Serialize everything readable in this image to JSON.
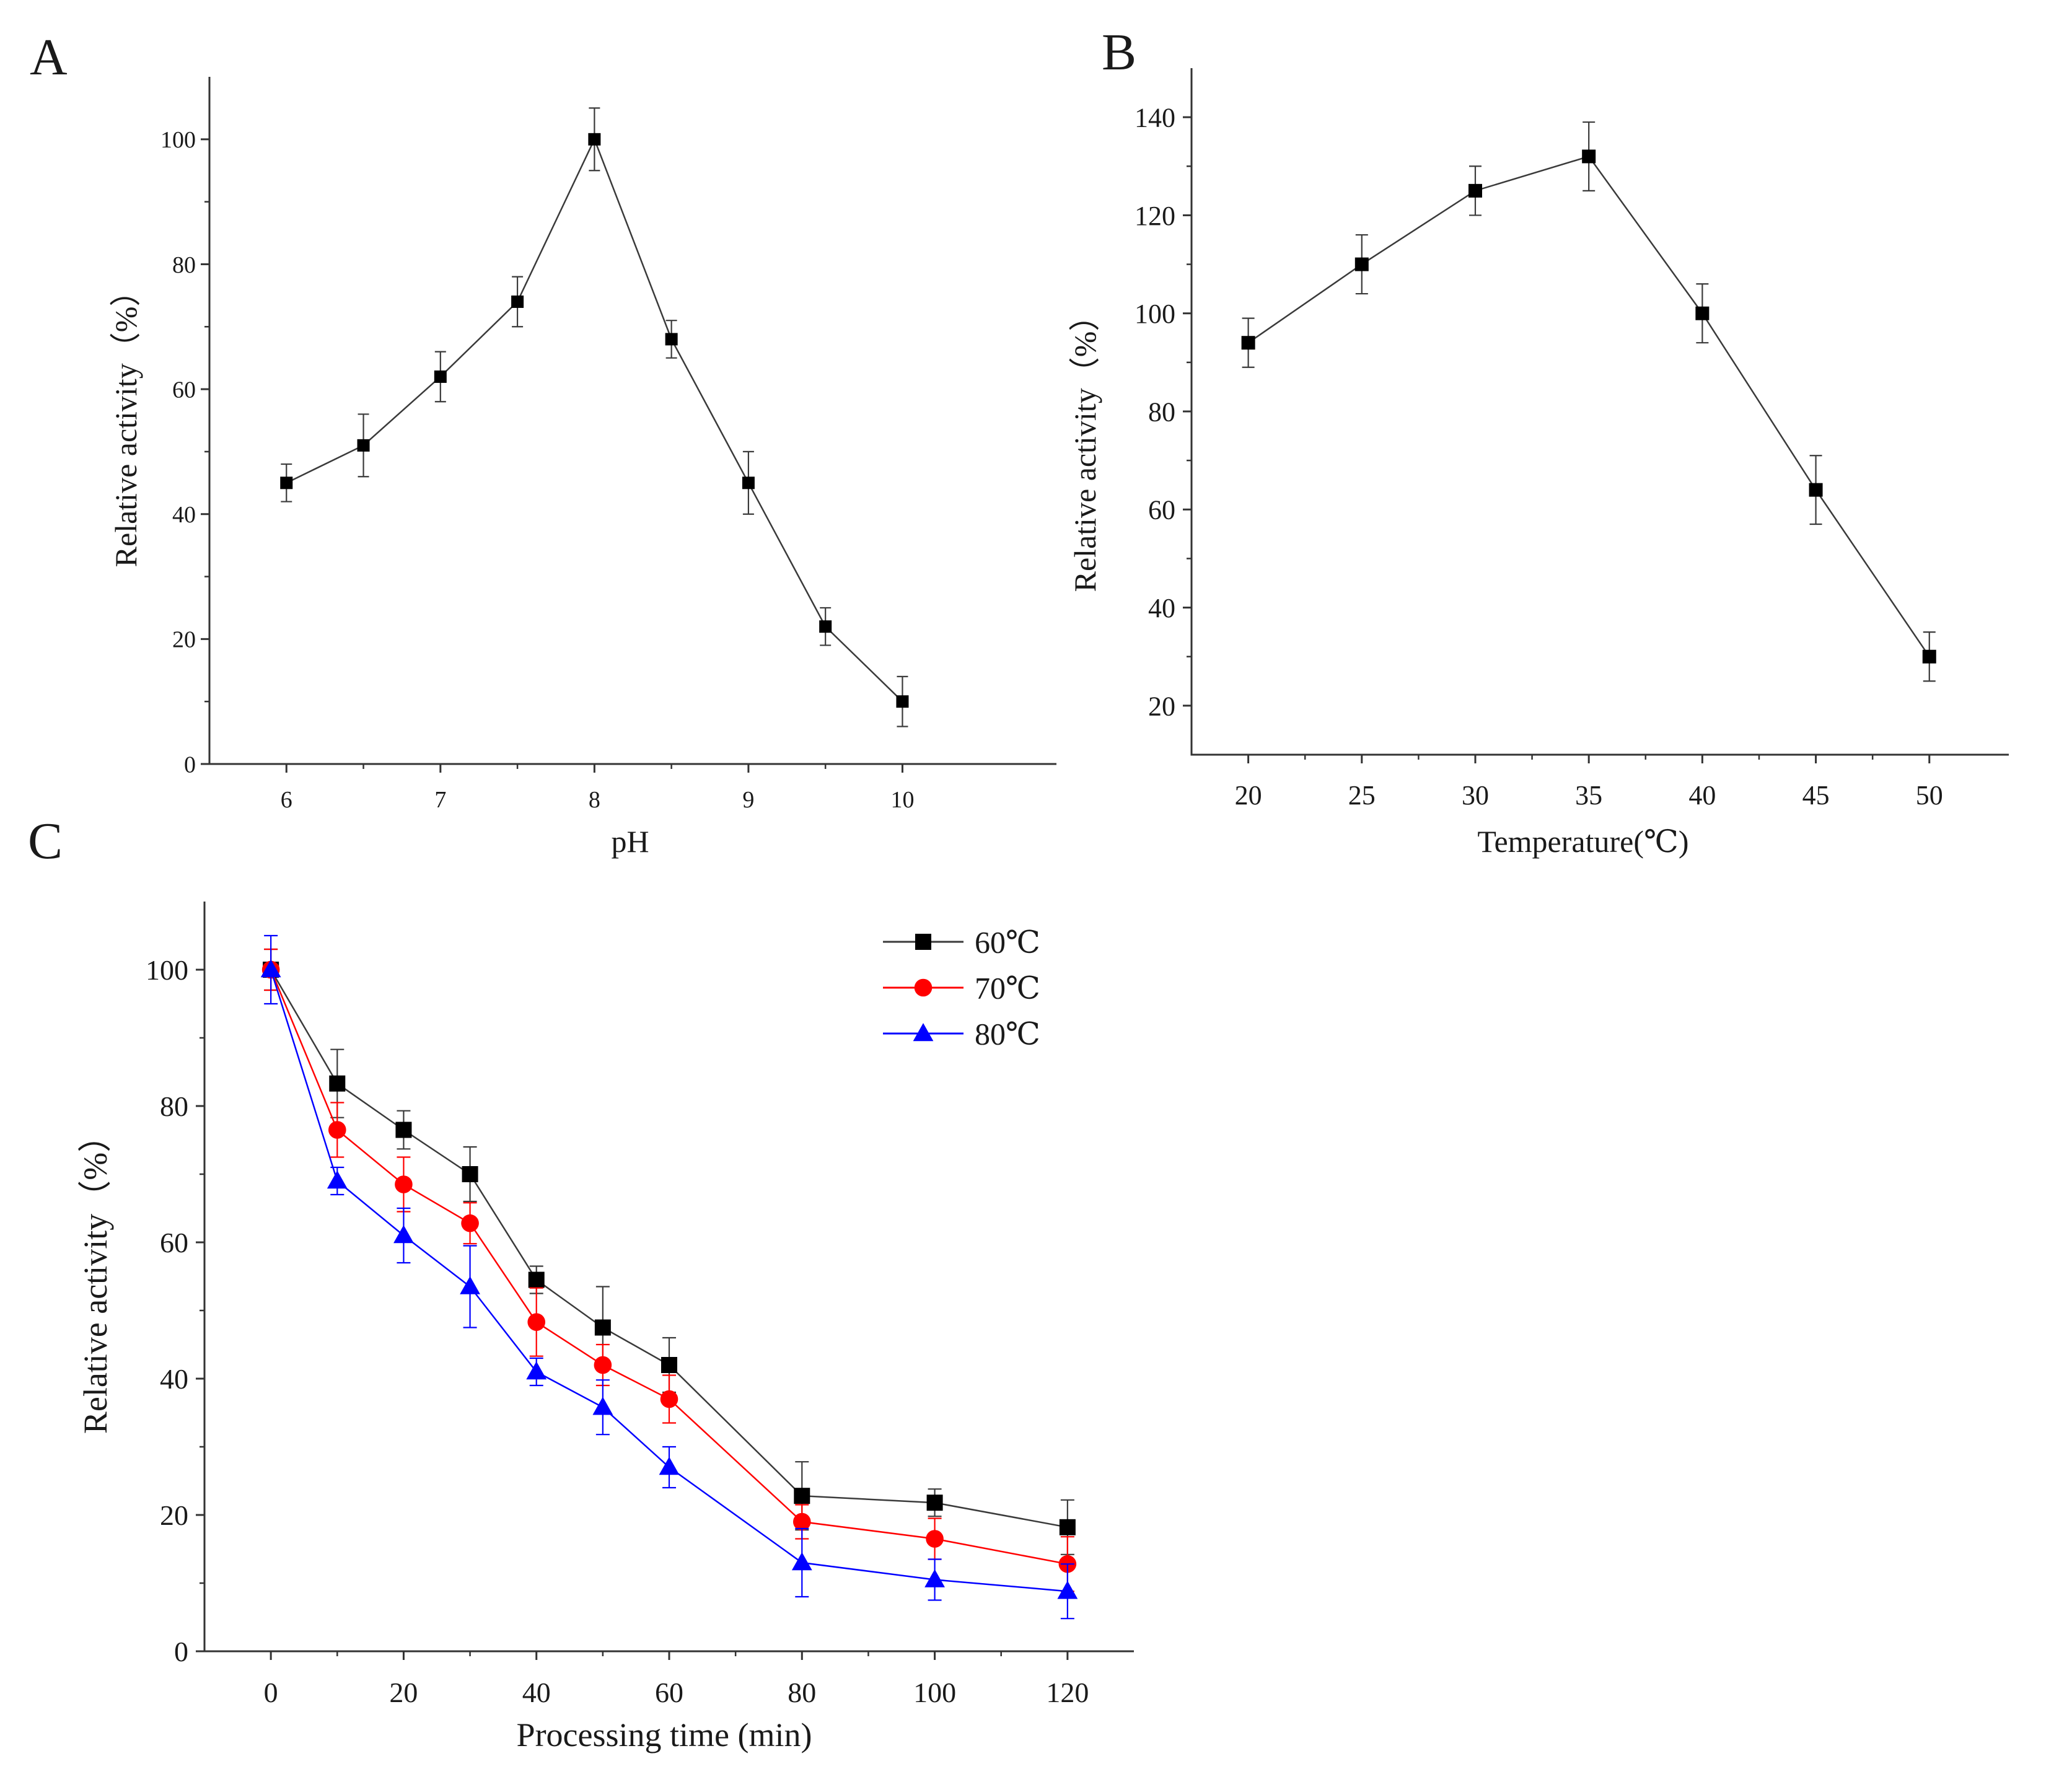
{
  "chart_data": [
    {
      "type": "line",
      "panel_label": "A",
      "xlabel": "pH",
      "ylabel": "Relative activity（%）",
      "xlim": [
        5.5,
        11.0
      ],
      "ylim": [
        0,
        110
      ],
      "xticks": [
        6,
        7,
        8,
        9,
        10
      ],
      "yticks": [
        0,
        20,
        40,
        60,
        80,
        100
      ],
      "grid": false,
      "series": [
        {
          "color": "#000000",
          "marker": "square",
          "x": [
            6,
            6.5,
            7,
            7.5,
            8,
            8.5,
            9,
            9.5,
            10
          ],
          "values": [
            45,
            51,
            62,
            74,
            100,
            68,
            45,
            22,
            10
          ],
          "err": [
            3,
            5,
            4,
            4,
            5,
            3,
            5,
            3,
            4
          ]
        }
      ]
    },
    {
      "type": "line",
      "panel_label": "B",
      "xlabel": "Temperature(℃)",
      "ylabel": "Relative activity（%）",
      "xlim": [
        17.5,
        53.5
      ],
      "ylim": [
        10,
        150
      ],
      "xticks": [
        20,
        25,
        30,
        35,
        40,
        45,
        50
      ],
      "yticks": [
        20,
        40,
        60,
        80,
        100,
        120,
        140
      ],
      "grid": false,
      "series": [
        {
          "color": "#000000",
          "marker": "square",
          "x": [
            20,
            25,
            30,
            35,
            40,
            45,
            50
          ],
          "values": [
            94,
            110,
            125,
            132,
            100,
            64,
            30
          ],
          "err": [
            5,
            6,
            5,
            7,
            6,
            7,
            5
          ]
        }
      ]
    },
    {
      "type": "line",
      "panel_label": "C",
      "xlabel": "Processing time (min)",
      "ylabel": "Relative activity（%）",
      "xlim": [
        -10,
        130
      ],
      "ylim": [
        0,
        110
      ],
      "xticks": [
        0,
        20,
        40,
        60,
        80,
        100,
        120
      ],
      "yticks": [
        0,
        20,
        40,
        60,
        80,
        100
      ],
      "grid": false,
      "legend_position": "top-right",
      "series": [
        {
          "name": "60℃",
          "color": "#000000",
          "marker": "square",
          "x": [
            0,
            10,
            20,
            30,
            40,
            50,
            60,
            80,
            100,
            120
          ],
          "values": [
            100,
            83.3,
            76.5,
            70,
            54.5,
            47.5,
            42,
            22.8,
            21.8,
            18.2
          ],
          "err": [
            3,
            5,
            2.8,
            4,
            2,
            6,
            4,
            5,
            2,
            4
          ]
        },
        {
          "name": "70℃",
          "color": "#ff0000",
          "marker": "circle",
          "x": [
            0,
            10,
            20,
            30,
            40,
            50,
            60,
            80,
            100,
            120
          ],
          "values": [
            100,
            76.5,
            68.5,
            62.8,
            48.3,
            42,
            37,
            19,
            16.5,
            12.8
          ],
          "err": [
            3,
            4,
            4,
            3,
            5,
            3,
            3.5,
            2.5,
            3,
            4
          ]
        },
        {
          "name": "80℃",
          "color": "#0000ff",
          "marker": "triangle",
          "x": [
            0,
            10,
            20,
            30,
            40,
            50,
            60,
            80,
            100,
            120
          ],
          "values": [
            100,
            69,
            61,
            53.5,
            41,
            35.8,
            27,
            13,
            10.5,
            8.8
          ],
          "err": [
            5,
            2,
            4,
            6,
            2,
            4,
            3,
            5,
            3,
            4
          ]
        }
      ]
    }
  ]
}
